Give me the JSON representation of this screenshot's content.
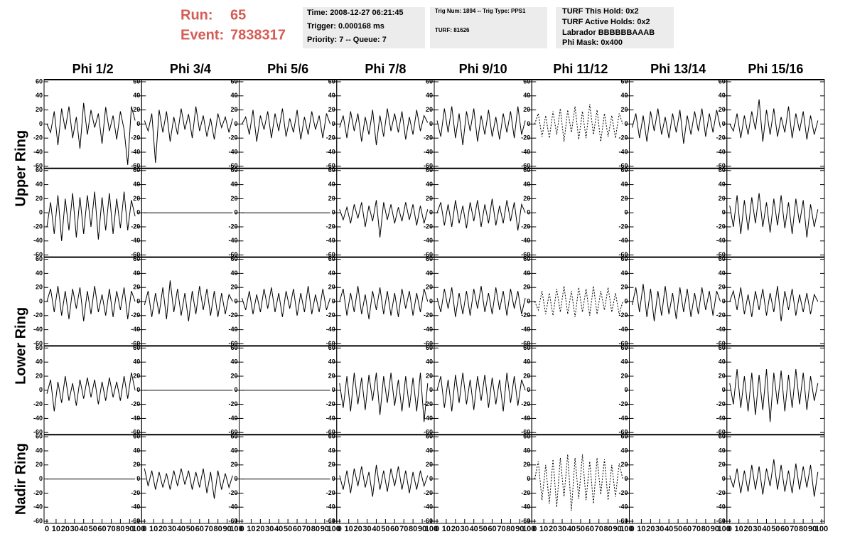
{
  "header": {
    "run_label": "Run:",
    "run": "65",
    "event_label": "Event:",
    "event": "7838317",
    "info_boxes": [
      [
        "Time: 2008-12-27 06:21:45",
        "Trigger: 0.000168 ms",
        "Priority: 7 -- Queue: 7"
      ],
      [
        "Trig Num: 1894 -- Trig Type: PPS1",
        "TURF: 81626"
      ],
      [
        "TURF This Hold: 0x2",
        "TURF Active Holds: 0x2",
        "Labrador BBBBBBAAAB",
        "Phi Mask: 0x400"
      ]
    ]
  },
  "chart_data": {
    "type": "waveform-grid",
    "columns": [
      "Phi 1/2",
      "Phi 3/4",
      "Phi 5/6",
      "Phi 7/8",
      "Phi 9/10",
      "Phi 11/12",
      "Phi 13/14",
      "Phi 15/16"
    ],
    "row_labels": [
      "Upper Ring",
      "Lower Ring",
      "Nadir Ring"
    ],
    "xlim": [
      0,
      100
    ],
    "xticks": [
      0,
      10,
      20,
      30,
      40,
      50,
      60,
      70,
      80,
      90,
      100
    ],
    "ylim": [
      -60,
      60
    ],
    "yticks": [
      -60,
      -40,
      -20,
      0,
      20,
      40,
      60
    ],
    "color": "#000000",
    "x": [
      0,
      4,
      8,
      12,
      16,
      20,
      24,
      28,
      32,
      36,
      40,
      44,
      48,
      52,
      56,
      60,
      64,
      68,
      72,
      76,
      80,
      84,
      88,
      92,
      96
    ],
    "panels": [
      [
        {
          "values": [
            0,
            -12,
            18,
            -30,
            22,
            -8,
            25,
            -20,
            10,
            -35,
            30,
            -15,
            20,
            -5,
            15,
            -28,
            24,
            -10,
            12,
            -22,
            18,
            -8,
            -58,
            25,
            5
          ]
        },
        {
          "values": [
            5,
            -10,
            15,
            -55,
            20,
            -12,
            18,
            -25,
            10,
            -15,
            22,
            -8,
            14,
            -20,
            25,
            -10,
            12,
            -18,
            8,
            -22,
            15,
            -5,
            10,
            -12,
            8
          ]
        },
        {
          "values": [
            0,
            10,
            -15,
            20,
            -25,
            12,
            -8,
            18,
            -20,
            15,
            -10,
            22,
            -18,
            8,
            -12,
            20,
            -22,
            10,
            -15,
            18,
            -8,
            12,
            -20,
            15,
            0
          ]
        },
        {
          "values": [
            -5,
            12,
            -20,
            18,
            -10,
            15,
            -25,
            10,
            -15,
            20,
            -30,
            12,
            -18,
            22,
            -10,
            15,
            -12,
            18,
            -22,
            10,
            -15,
            20,
            -10,
            12,
            2
          ]
        },
        {
          "values": [
            5,
            -18,
            22,
            -12,
            25,
            -20,
            15,
            -30,
            18,
            -10,
            22,
            -25,
            12,
            -15,
            20,
            -18,
            10,
            -22,
            15,
            -12,
            18,
            -20,
            25,
            -15,
            5
          ]
        },
        {
          "values": [
            0,
            15,
            -18,
            12,
            -20,
            18,
            -15,
            22,
            -25,
            20,
            -12,
            25,
            -22,
            18,
            -20,
            28,
            -15,
            20,
            -25,
            15,
            -18,
            12,
            -20,
            15,
            0
          ],
          "dashed": true
        },
        {
          "values": [
            -5,
            15,
            -20,
            12,
            -25,
            18,
            -10,
            22,
            -15,
            10,
            -20,
            15,
            -12,
            20,
            -28,
            12,
            -15,
            18,
            -10,
            22,
            -18,
            15,
            -12,
            20,
            -5
          ]
        },
        {
          "values": [
            0,
            -10,
            15,
            -20,
            12,
            -15,
            18,
            -8,
            35,
            -25,
            20,
            -15,
            22,
            -18,
            10,
            -12,
            25,
            -20,
            15,
            -10,
            18,
            -22,
            12,
            -15,
            5
          ]
        }
      ],
      [
        {
          "values": [
            -20,
            15,
            -30,
            25,
            -40,
            20,
            -25,
            28,
            -35,
            22,
            -30,
            25,
            -20,
            30,
            -38,
            22,
            -25,
            28,
            -30,
            20,
            -22,
            30,
            -25,
            18,
            -5
          ]
        },
        {
          "values": [
            0,
            0,
            0,
            0,
            0,
            0,
            0,
            0,
            0,
            0,
            0,
            0,
            0,
            0,
            0,
            0,
            0,
            0,
            0,
            0,
            0,
            0,
            0,
            0,
            0
          ]
        },
        {
          "values": [
            0,
            0,
            0,
            0,
            0,
            0,
            0,
            0,
            0,
            0,
            0,
            0,
            0,
            0,
            0,
            0,
            0,
            0,
            0,
            0,
            0,
            0,
            0,
            0,
            0
          ]
        },
        {
          "values": [
            5,
            -10,
            8,
            -15,
            12,
            -8,
            15,
            -20,
            10,
            -12,
            18,
            -35,
            15,
            -10,
            12,
            -15,
            8,
            -12,
            15,
            -10,
            12,
            -18,
            10,
            -15,
            5
          ]
        },
        {
          "values": [
            0,
            15,
            -18,
            12,
            -20,
            18,
            -15,
            10,
            -22,
            15,
            -12,
            18,
            -20,
            12,
            -15,
            20,
            -18,
            10,
            -15,
            18,
            -12,
            15,
            -25,
            12,
            0
          ]
        },
        null,
        null,
        {
          "values": [
            10,
            -20,
            25,
            -30,
            18,
            -25,
            22,
            -15,
            28,
            -20,
            15,
            -28,
            20,
            -18,
            25,
            -22,
            15,
            -30,
            20,
            -15,
            18,
            -35,
            12,
            -20,
            5
          ]
        }
      ],
      [
        {
          "values": [
            0,
            18,
            -15,
            22,
            -20,
            15,
            -25,
            18,
            -10,
            20,
            -28,
            15,
            -18,
            22,
            -15,
            10,
            -20,
            18,
            -22,
            15,
            -12,
            20,
            -25,
            15,
            0
          ]
        },
        {
          "values": [
            -5,
            15,
            -22,
            12,
            -18,
            20,
            -25,
            30,
            -15,
            18,
            -20,
            12,
            -28,
            15,
            -18,
            22,
            -12,
            18,
            -20,
            15,
            -22,
            12,
            -18,
            10,
            0
          ]
        },
        {
          "values": [
            5,
            -12,
            15,
            -18,
            10,
            -15,
            18,
            -10,
            20,
            -15,
            12,
            -22,
            15,
            -10,
            18,
            -20,
            12,
            -15,
            22,
            -18,
            10,
            -15,
            18,
            -12,
            5
          ]
        },
        {
          "values": [
            0,
            18,
            -20,
            12,
            -15,
            22,
            -18,
            10,
            -25,
            15,
            -12,
            20,
            -18,
            15,
            -20,
            12,
            -22,
            18,
            -10,
            15,
            -20,
            12,
            -15,
            18,
            0
          ]
        },
        {
          "values": [
            5,
            -15,
            18,
            -10,
            20,
            -22,
            12,
            -18,
            15,
            -20,
            18,
            -10,
            22,
            -15,
            12,
            -18,
            20,
            -12,
            15,
            -20,
            18,
            -10,
            15,
            -18,
            5
          ]
        },
        {
          "values": [
            0,
            -12,
            15,
            -18,
            12,
            -20,
            18,
            -15,
            22,
            -18,
            15,
            -22,
            20,
            -15,
            18,
            -20,
            22,
            -18,
            15,
            -12,
            20,
            -15,
            12,
            -18,
            0
          ],
          "dashed": true
        },
        {
          "values": [
            -5,
            20,
            -15,
            25,
            -22,
            18,
            -28,
            15,
            -20,
            22,
            -18,
            12,
            -25,
            20,
            -15,
            18,
            -22,
            12,
            -18,
            20,
            -12,
            15,
            -20,
            15,
            0
          ]
        },
        {
          "values": [
            0,
            15,
            -12,
            20,
            -18,
            10,
            -22,
            15,
            -12,
            18,
            -20,
            12,
            -15,
            22,
            -28,
            15,
            -12,
            18,
            -20,
            10,
            -15,
            12,
            -18,
            10,
            0
          ]
        }
      ],
      [
        {
          "values": [
            -5,
            15,
            -30,
            12,
            -18,
            20,
            -15,
            10,
            -22,
            15,
            -12,
            18,
            -10,
            15,
            -20,
            12,
            -15,
            18,
            -10,
            12,
            -15,
            20,
            -12,
            25,
            0
          ]
        },
        {
          "values": [
            0,
            0,
            0,
            0,
            0,
            0,
            0,
            0,
            0,
            0,
            0,
            0,
            0,
            0,
            0,
            0,
            0,
            0,
            0,
            0,
            0,
            0,
            0,
            0,
            0
          ]
        },
        {
          "values": [
            0,
            0,
            0,
            0,
            0,
            0,
            0,
            0,
            0,
            0,
            0,
            0,
            0,
            0,
            0,
            0,
            0,
            0,
            0,
            0,
            0,
            0,
            0,
            0,
            0
          ]
        },
        {
          "values": [
            10,
            -25,
            20,
            -30,
            25,
            -20,
            18,
            -28,
            22,
            -15,
            25,
            -35,
            20,
            -18,
            25,
            -22,
            15,
            -30,
            20,
            -25,
            18,
            -30,
            25,
            -45,
            10
          ]
        },
        {
          "values": [
            0,
            20,
            -25,
            15,
            -30,
            22,
            -18,
            25,
            -20,
            15,
            -28,
            20,
            -15,
            22,
            -25,
            18,
            -20,
            15,
            -30,
            25,
            -18,
            20,
            -22,
            15,
            0
          ]
        },
        null,
        null,
        {
          "values": [
            10,
            -20,
            30,
            -25,
            20,
            -30,
            25,
            -35,
            22,
            -28,
            30,
            -45,
            25,
            -20,
            28,
            -30,
            22,
            -25,
            30,
            -20,
            25,
            -28,
            20,
            -15,
            10
          ]
        }
      ],
      [
        {
          "values": [
            0,
            0,
            0,
            0,
            0,
            0,
            0,
            0,
            0,
            0,
            0,
            0,
            0,
            0,
            0,
            0,
            0,
            0,
            0,
            0,
            0,
            0,
            0,
            0,
            0
          ]
        },
        {
          "values": [
            15,
            -10,
            12,
            -15,
            10,
            -12,
            8,
            -15,
            12,
            -10,
            15,
            -8,
            12,
            -15,
            10,
            -12,
            15,
            -20,
            10,
            -28,
            12,
            -15,
            8,
            -12,
            5
          ]
        },
        {
          "values": [
            0,
            0,
            0,
            0,
            0,
            0,
            0,
            0,
            0,
            0,
            0,
            0,
            0,
            0,
            0,
            0,
            0,
            0,
            0,
            0,
            0,
            0,
            0,
            0,
            0
          ]
        },
        {
          "values": [
            5,
            -15,
            12,
            -20,
            15,
            -10,
            18,
            -12,
            10,
            -25,
            20,
            -15,
            12,
            -18,
            15,
            -10,
            18,
            -15,
            12,
            -20,
            10,
            -15,
            12,
            -10,
            5
          ]
        },
        null,
        {
          "values": [
            0,
            25,
            -30,
            20,
            -35,
            28,
            -40,
            30,
            -25,
            35,
            -45,
            30,
            -28,
            35,
            -30,
            25,
            -35,
            30,
            -22,
            28,
            -30,
            20,
            -25,
            22,
            0
          ],
          "dashed": true
        },
        null,
        {
          "values": [
            5,
            -12,
            15,
            -20,
            12,
            -18,
            20,
            -15,
            18,
            -22,
            15,
            -10,
            28,
            -15,
            20,
            -18,
            12,
            -20,
            22,
            -15,
            18,
            -12,
            20,
            -25,
            10
          ]
        }
      ]
    ]
  }
}
